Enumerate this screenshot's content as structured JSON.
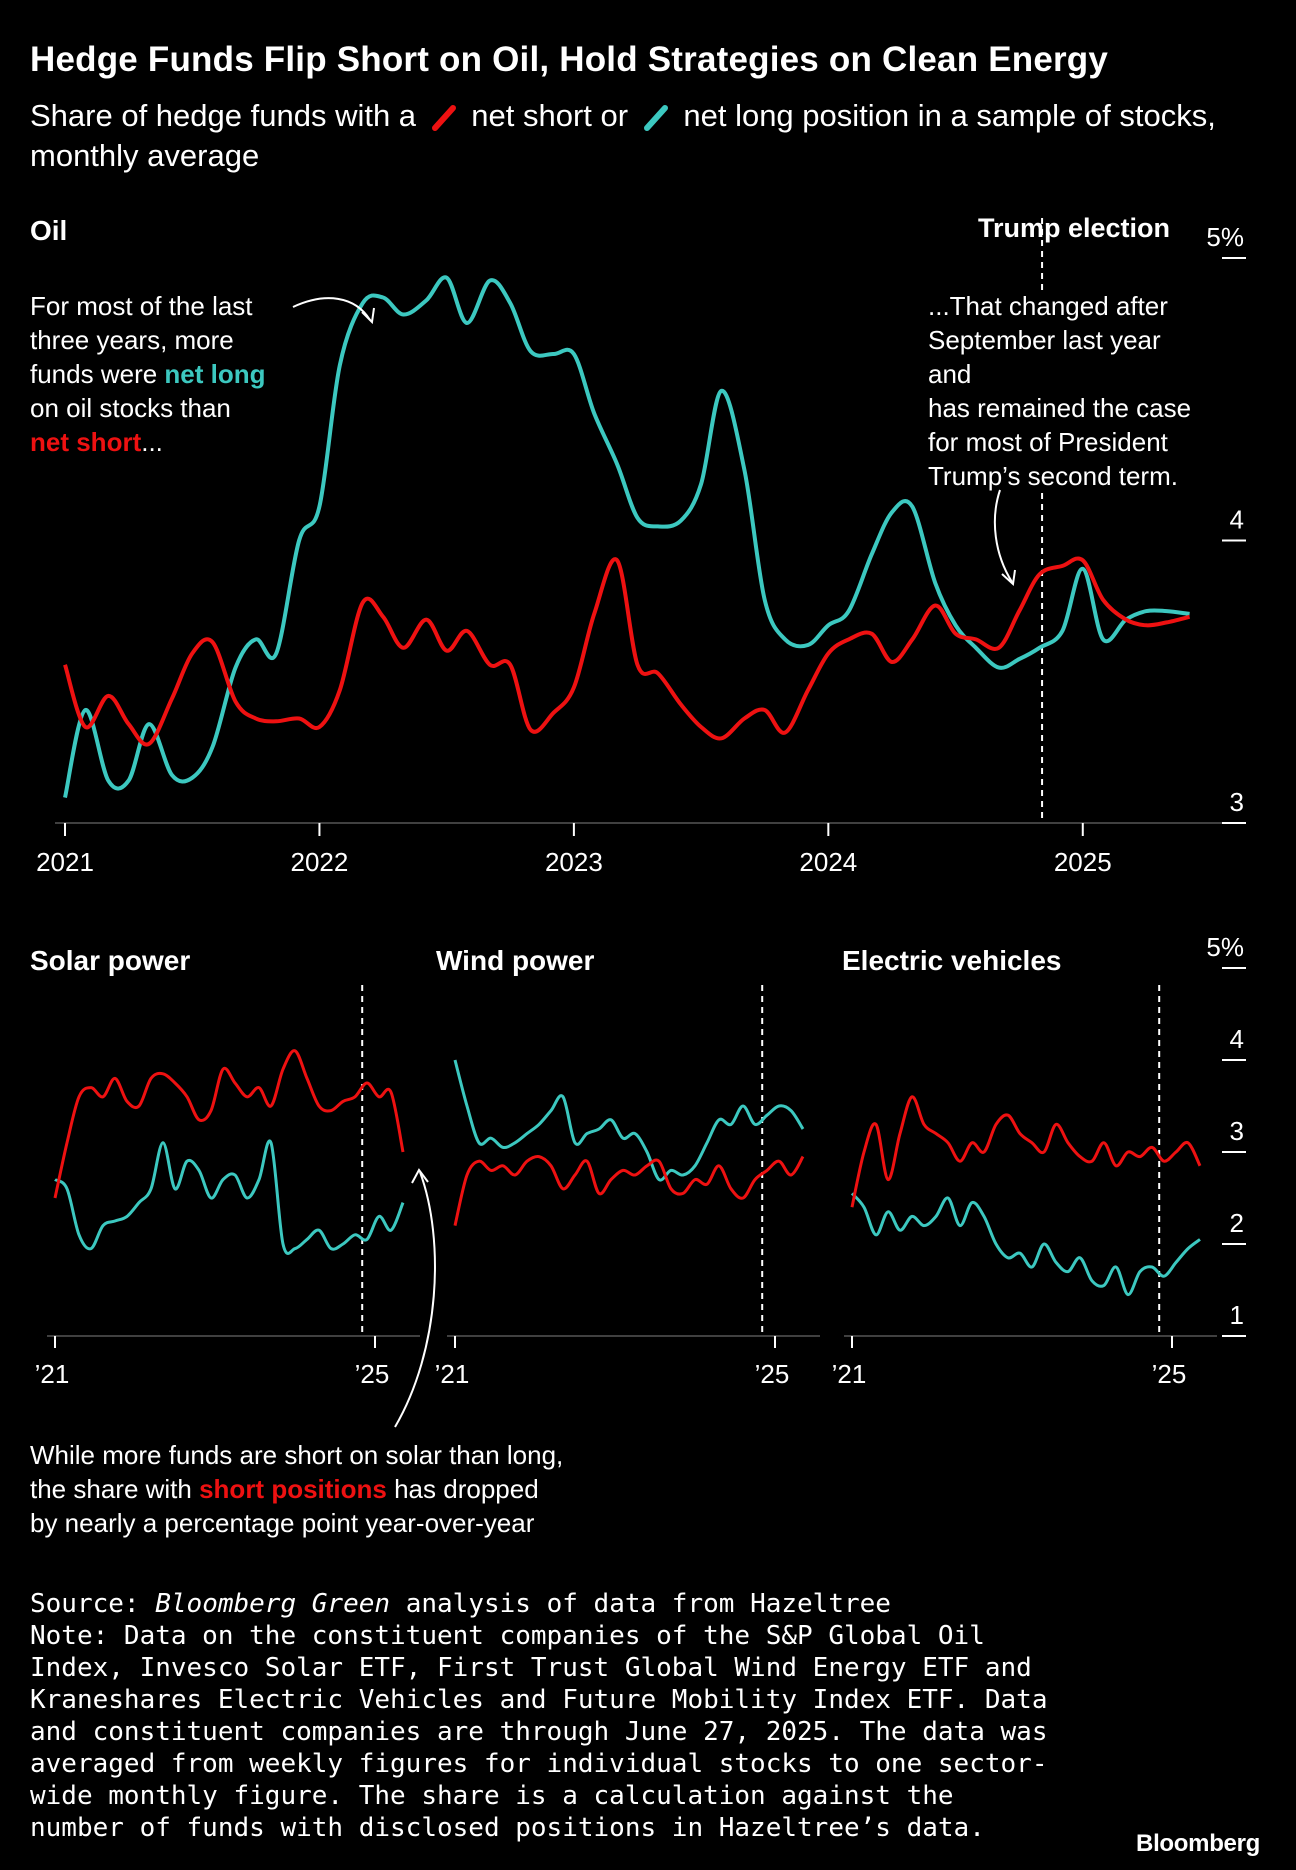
{
  "header": {
    "title": "Hedge Funds Flip Short on Oil, Hold Strategies on Clean Energy",
    "subtitle_1": "Share of hedge funds with a",
    "subtitle_2": "net short or",
    "subtitle_3": "net long position in a sample of stocks, monthly average"
  },
  "colors": {
    "short": "#ee1111",
    "long": "#3cc8c0",
    "axis": "#ffffff",
    "background": "#000000"
  },
  "annotations": {
    "oil_left_1": "For most of the last",
    "oil_left_2": "three years, more",
    "oil_left_3a": "funds were ",
    "oil_left_3b": "net long",
    "oil_left_4": "on oil stocks than",
    "oil_left_5a": "net short",
    "oil_left_5b": "...",
    "oil_right_1": "...That changed after",
    "oil_right_2": "September last year",
    "oil_right_3": "and",
    "oil_right_4": "has remained the case",
    "oil_right_5": "for most of President",
    "oil_right_6": "Trump’s second term.",
    "event_label": "Trump election",
    "solar_1": "While more funds are short on solar than long,",
    "solar_2a": "the share with ",
    "solar_2b": "short positions",
    "solar_2c": " has dropped",
    "solar_3": "by nearly a percentage point year-over-year"
  },
  "footer": {
    "source_prefix": "Source: ",
    "source_em": "Bloomberg Green",
    "source_suffix": " analysis of data from Hazeltree",
    "note": "Note: Data on the constituent companies of the S&P Global Oil Index, Invesco Solar ETF, First Trust Global Wind Energy ETF and Kraneshares Electric Vehicles and Future Mobility Index ETF. Data and constituent companies are through June 27, 2025. The data was averaged from weekly figures for individual stocks to one sector-wide monthly figure. The share is a calculation against the number of funds with disclosed positions in Hazeltree’s data.",
    "brand": "Bloomberg"
  },
  "chart_data": [
    {
      "type": "line",
      "title": "Oil",
      "y_unit": "%",
      "ylim": [
        3,
        5
      ],
      "yticks": [
        {
          "value": 3,
          "label": "3"
        },
        {
          "value": 4,
          "label": "4"
        },
        {
          "value": 5,
          "label": "5%"
        }
      ],
      "xlim": [
        2021,
        2025.5
      ],
      "xticks": [
        {
          "value": 2021,
          "label": "2021"
        },
        {
          "value": 2022,
          "label": "2022"
        },
        {
          "value": 2023,
          "label": "2023"
        },
        {
          "value": 2024,
          "label": "2024"
        },
        {
          "value": 2025,
          "label": "2025"
        }
      ],
      "event_line": 2024.84,
      "series": [
        {
          "name": "net short",
          "color_key": "short",
          "x": [
            2021.0,
            2021.08,
            2021.17,
            2021.25,
            2021.33,
            2021.42,
            2021.5,
            2021.58,
            2021.67,
            2021.75,
            2021.83,
            2021.92,
            2022.0,
            2022.08,
            2022.17,
            2022.25,
            2022.33,
            2022.42,
            2022.5,
            2022.58,
            2022.67,
            2022.75,
            2022.83,
            2022.92,
            2023.0,
            2023.08,
            2023.17,
            2023.25,
            2023.33,
            2023.42,
            2023.5,
            2023.58,
            2023.67,
            2023.75,
            2023.83,
            2023.92,
            2024.0,
            2024.08,
            2024.17,
            2024.25,
            2024.33,
            2024.42,
            2024.5,
            2024.58,
            2024.67,
            2024.75,
            2024.83,
            2024.92,
            2025.0,
            2025.08,
            2025.17,
            2025.25,
            2025.33,
            2025.42
          ],
          "y": [
            3.56,
            3.34,
            3.45,
            3.35,
            3.28,
            3.44,
            3.6,
            3.64,
            3.43,
            3.37,
            3.36,
            3.37,
            3.34,
            3.47,
            3.78,
            3.73,
            3.62,
            3.72,
            3.61,
            3.68,
            3.56,
            3.56,
            3.33,
            3.39,
            3.48,
            3.74,
            3.93,
            3.56,
            3.53,
            3.42,
            3.34,
            3.3,
            3.37,
            3.4,
            3.32,
            3.47,
            3.6,
            3.65,
            3.67,
            3.57,
            3.65,
            3.77,
            3.67,
            3.65,
            3.62,
            3.75,
            3.88,
            3.91,
            3.93,
            3.79,
            3.72,
            3.7,
            3.71,
            3.73
          ]
        },
        {
          "name": "net long",
          "color_key": "long",
          "x": [
            2021.0,
            2021.08,
            2021.17,
            2021.25,
            2021.33,
            2021.42,
            2021.5,
            2021.58,
            2021.67,
            2021.75,
            2021.83,
            2021.92,
            2022.0,
            2022.08,
            2022.17,
            2022.25,
            2022.33,
            2022.42,
            2022.5,
            2022.58,
            2022.67,
            2022.75,
            2022.83,
            2022.92,
            2023.0,
            2023.08,
            2023.17,
            2023.25,
            2023.33,
            2023.42,
            2023.5,
            2023.58,
            2023.67,
            2023.75,
            2023.83,
            2023.92,
            2024.0,
            2024.08,
            2024.17,
            2024.25,
            2024.33,
            2024.42,
            2024.5,
            2024.58,
            2024.67,
            2024.75,
            2024.83,
            2024.92,
            2025.0,
            2025.08,
            2025.17,
            2025.25,
            2025.33,
            2025.42
          ],
          "y": [
            3.09,
            3.4,
            3.15,
            3.15,
            3.35,
            3.17,
            3.16,
            3.27,
            3.55,
            3.65,
            3.6,
            4.0,
            4.12,
            4.62,
            4.84,
            4.86,
            4.8,
            4.85,
            4.93,
            4.77,
            4.92,
            4.84,
            4.67,
            4.66,
            4.66,
            4.45,
            4.27,
            4.08,
            4.05,
            4.07,
            4.2,
            4.53,
            4.25,
            3.79,
            3.65,
            3.63,
            3.7,
            3.75,
            3.95,
            4.1,
            4.12,
            3.85,
            3.7,
            3.62,
            3.55,
            3.58,
            3.62,
            3.68,
            3.9,
            3.65,
            3.72,
            3.75,
            3.75,
            3.74
          ]
        }
      ]
    },
    {
      "type": "line",
      "title": "Solar power",
      "ylim": [
        1,
        5
      ],
      "xlim": [
        2021,
        2025.5
      ],
      "xticks": [
        {
          "value": 2021,
          "label": "’21"
        },
        {
          "value": 2025,
          "label": "’25"
        }
      ],
      "event_line": 2024.84,
      "series": [
        {
          "name": "net short",
          "color_key": "short",
          "x": [
            2021.0,
            2021.15,
            2021.3,
            2021.45,
            2021.6,
            2021.75,
            2021.9,
            2022.05,
            2022.2,
            2022.35,
            2022.5,
            2022.65,
            2022.8,
            2022.95,
            2023.1,
            2023.25,
            2023.4,
            2023.55,
            2023.7,
            2023.85,
            2024.0,
            2024.15,
            2024.3,
            2024.45,
            2024.6,
            2024.75,
            2024.9,
            2025.05,
            2025.2,
            2025.35
          ],
          "y": [
            2.5,
            3.1,
            3.6,
            3.7,
            3.6,
            3.8,
            3.55,
            3.5,
            3.8,
            3.85,
            3.75,
            3.6,
            3.35,
            3.45,
            3.9,
            3.75,
            3.6,
            3.7,
            3.5,
            3.9,
            4.1,
            3.8,
            3.5,
            3.45,
            3.55,
            3.6,
            3.75,
            3.6,
            3.65,
            3.0
          ]
        },
        {
          "name": "net long",
          "color_key": "long",
          "x": [
            2021.0,
            2021.15,
            2021.3,
            2021.45,
            2021.6,
            2021.75,
            2021.9,
            2022.05,
            2022.2,
            2022.35,
            2022.5,
            2022.65,
            2022.8,
            2022.95,
            2023.1,
            2023.25,
            2023.4,
            2023.55,
            2023.7,
            2023.85,
            2024.0,
            2024.15,
            2024.3,
            2024.45,
            2024.6,
            2024.75,
            2024.9,
            2025.05,
            2025.2,
            2025.35
          ],
          "y": [
            2.7,
            2.6,
            2.1,
            1.95,
            2.2,
            2.25,
            2.3,
            2.45,
            2.6,
            3.1,
            2.6,
            2.9,
            2.8,
            2.5,
            2.7,
            2.75,
            2.5,
            2.7,
            3.1,
            2.0,
            1.95,
            2.05,
            2.15,
            1.95,
            2.0,
            2.1,
            2.05,
            2.3,
            2.15,
            2.45
          ]
        }
      ]
    },
    {
      "type": "line",
      "title": "Wind power",
      "ylim": [
        1,
        5
      ],
      "xlim": [
        2021,
        2025.5
      ],
      "xticks": [
        {
          "value": 2021,
          "label": "’21"
        },
        {
          "value": 2025,
          "label": "’25"
        }
      ],
      "event_line": 2024.84,
      "series": [
        {
          "name": "net short",
          "color_key": "short",
          "x": [
            2021.0,
            2021.15,
            2021.3,
            2021.45,
            2021.6,
            2021.75,
            2021.9,
            2022.05,
            2022.2,
            2022.35,
            2022.5,
            2022.65,
            2022.8,
            2022.95,
            2023.1,
            2023.25,
            2023.4,
            2023.55,
            2023.7,
            2023.85,
            2024.0,
            2024.15,
            2024.3,
            2024.45,
            2024.6,
            2024.75,
            2024.9,
            2025.05,
            2025.2,
            2025.35
          ],
          "y": [
            2.2,
            2.75,
            2.9,
            2.8,
            2.85,
            2.75,
            2.9,
            2.95,
            2.85,
            2.6,
            2.75,
            2.9,
            2.55,
            2.7,
            2.8,
            2.75,
            2.85,
            2.9,
            2.6,
            2.55,
            2.7,
            2.65,
            2.85,
            2.6,
            2.5,
            2.7,
            2.8,
            2.9,
            2.75,
            2.95
          ]
        },
        {
          "name": "net long",
          "color_key": "long",
          "x": [
            2021.0,
            2021.15,
            2021.3,
            2021.45,
            2021.6,
            2021.75,
            2021.9,
            2022.05,
            2022.2,
            2022.35,
            2022.5,
            2022.65,
            2022.8,
            2022.95,
            2023.1,
            2023.25,
            2023.4,
            2023.55,
            2023.7,
            2023.85,
            2024.0,
            2024.15,
            2024.3,
            2024.45,
            2024.6,
            2024.75,
            2024.9,
            2025.05,
            2025.2,
            2025.35
          ],
          "y": [
            4.0,
            3.5,
            3.1,
            3.15,
            3.05,
            3.1,
            3.2,
            3.3,
            3.45,
            3.6,
            3.1,
            3.2,
            3.25,
            3.35,
            3.15,
            3.2,
            3.0,
            2.7,
            2.8,
            2.75,
            2.85,
            3.1,
            3.35,
            3.3,
            3.5,
            3.3,
            3.4,
            3.5,
            3.45,
            3.25
          ]
        }
      ]
    },
    {
      "type": "line",
      "title": "Electric vehicles",
      "y_unit": "%",
      "ylim": [
        1,
        5
      ],
      "yticks": [
        {
          "value": 1,
          "label": "1"
        },
        {
          "value": 2,
          "label": "2"
        },
        {
          "value": 3,
          "label": "3"
        },
        {
          "value": 4,
          "label": "4"
        },
        {
          "value": 5,
          "label": "5%"
        }
      ],
      "xlim": [
        2021,
        2025.5
      ],
      "xticks": [
        {
          "value": 2021,
          "label": "’21"
        },
        {
          "value": 2025,
          "label": "’25"
        }
      ],
      "event_line": 2024.84,
      "series": [
        {
          "name": "net short",
          "color_key": "short",
          "x": [
            2021.0,
            2021.15,
            2021.3,
            2021.45,
            2021.6,
            2021.75,
            2021.9,
            2022.05,
            2022.2,
            2022.35,
            2022.5,
            2022.65,
            2022.8,
            2022.95,
            2023.1,
            2023.25,
            2023.4,
            2023.55,
            2023.7,
            2023.85,
            2024.0,
            2024.15,
            2024.3,
            2024.45,
            2024.6,
            2024.75,
            2024.9,
            2025.05,
            2025.2,
            2025.35
          ],
          "y": [
            2.4,
            3.0,
            3.3,
            2.7,
            3.2,
            3.6,
            3.3,
            3.2,
            3.1,
            2.9,
            3.1,
            3.0,
            3.3,
            3.4,
            3.2,
            3.1,
            3.0,
            3.3,
            3.1,
            2.95,
            2.9,
            3.1,
            2.85,
            3.0,
            2.95,
            3.05,
            2.9,
            3.0,
            3.1,
            2.85
          ]
        },
        {
          "name": "net long",
          "color_key": "long",
          "x": [
            2021.0,
            2021.15,
            2021.3,
            2021.45,
            2021.6,
            2021.75,
            2021.9,
            2022.05,
            2022.2,
            2022.35,
            2022.5,
            2022.65,
            2022.8,
            2022.95,
            2023.1,
            2023.25,
            2023.4,
            2023.55,
            2023.7,
            2023.85,
            2024.0,
            2024.15,
            2024.3,
            2024.45,
            2024.6,
            2024.75,
            2024.9,
            2025.05,
            2025.2,
            2025.35
          ],
          "y": [
            2.55,
            2.4,
            2.1,
            2.35,
            2.15,
            2.3,
            2.2,
            2.3,
            2.5,
            2.2,
            2.45,
            2.3,
            2.0,
            1.85,
            1.9,
            1.75,
            2.0,
            1.8,
            1.7,
            1.85,
            1.6,
            1.55,
            1.75,
            1.45,
            1.7,
            1.75,
            1.65,
            1.8,
            1.95,
            2.05
          ]
        }
      ]
    }
  ]
}
